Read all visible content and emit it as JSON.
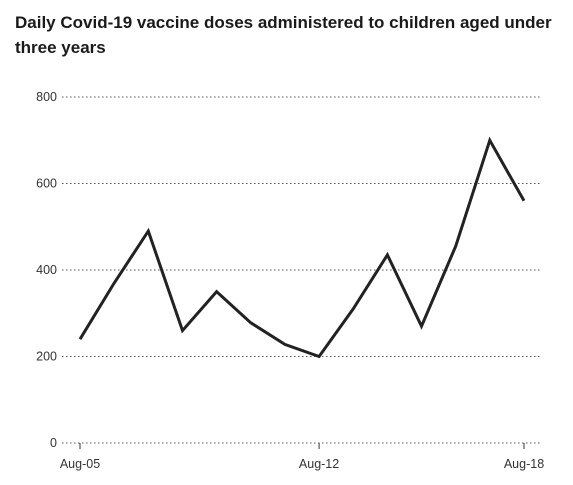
{
  "chart_data": {
    "type": "line",
    "title": "Daily Covid-19 vaccine doses administered to children aged under three years",
    "xlabel": "",
    "ylabel": "",
    "x": [
      "Aug-05",
      "Aug-06",
      "Aug-07",
      "Aug-08",
      "Aug-09",
      "Aug-10",
      "Aug-11",
      "Aug-12",
      "Aug-13",
      "Aug-14",
      "Aug-15",
      "Aug-16",
      "Aug-17",
      "Aug-18"
    ],
    "x_tick_labels": [
      "Aug-05",
      "Aug-12",
      "Aug-18"
    ],
    "series": [
      {
        "values": [
          240,
          370,
          490,
          260,
          350,
          278,
          228,
          200,
          310,
          435,
          270,
          455,
          700,
          560
        ]
      }
    ],
    "ylim": [
      0,
      800
    ],
    "y_ticks": [
      0,
      200,
      400,
      600,
      800
    ],
    "grid": "horizontal-dotted",
    "line_color": "#222222"
  }
}
